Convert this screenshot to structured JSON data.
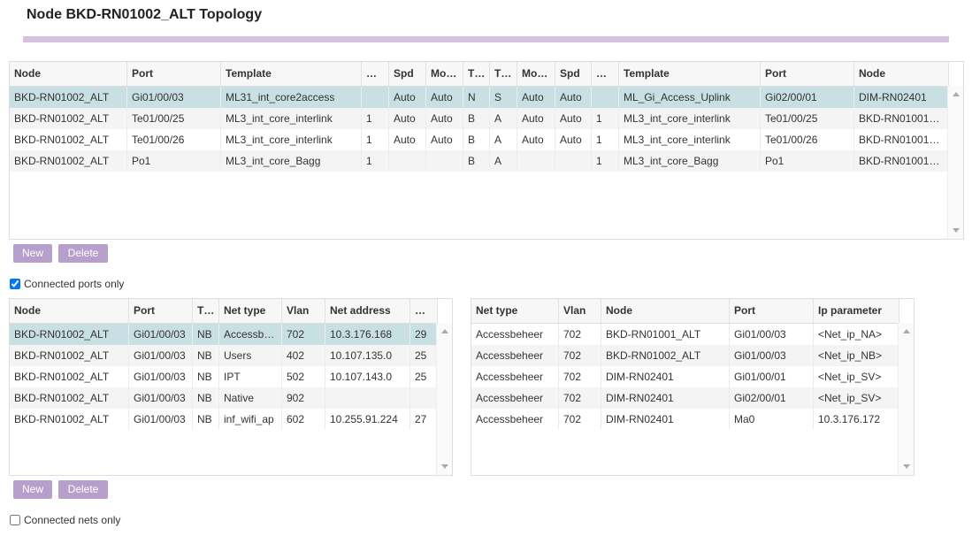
{
  "title": "Node BKD-RN01002_ALT Topology",
  "links_top": {
    "columns": [
      "Node",
      "Port",
      "Template",
      "…",
      "Spd",
      "Mo…",
      "T…",
      "T…",
      "Mo…",
      "Spd",
      "…",
      "Template",
      "Port",
      "Node"
    ],
    "selected_row": 0,
    "rows": [
      [
        "BKD-RN01002_ALT",
        "Gi01/00/03",
        "ML31_int_core2access",
        null,
        "Auto",
        "Auto",
        "N",
        "S",
        "Auto",
        "Auto",
        null,
        "ML_Gi_Access_Uplink",
        "Gi02/00/01",
        "DIM-RN02401"
      ],
      [
        "BKD-RN01002_ALT",
        "Te01/00/25",
        "ML3_int_core_interlink",
        1,
        "Auto",
        "Auto",
        "B",
        "A",
        "Auto",
        "Auto",
        1,
        "ML3_int_core_interlink",
        "Te01/00/25",
        "BKD-RN01001…"
      ],
      [
        "BKD-RN01002_ALT",
        "Te01/00/26",
        "ML3_int_core_interlink",
        1,
        "Auto",
        "Auto",
        "B",
        "A",
        "Auto",
        "Auto",
        1,
        "ML3_int_core_interlink",
        "Te01/00/26",
        "BKD-RN01001…"
      ],
      [
        "BKD-RN01002_ALT",
        "Po1",
        "ML3_int_core_Bagg",
        1,
        null,
        null,
        "B",
        "A",
        null,
        null,
        1,
        "ML3_int_core_Bagg",
        "Po1",
        "BKD-RN01001…"
      ]
    ]
  },
  "links_buttons": {
    "new": "New",
    "delete": "Delete"
  },
  "connected_ports": {
    "label": "Connected ports only",
    "checked": true
  },
  "nets": {
    "columns": [
      "Node",
      "Port",
      "T…",
      "Net type",
      "Vlan",
      "Net address",
      "…"
    ],
    "selected_row": 0,
    "rows": [
      [
        "BKD-RN01002_ALT",
        "Gi01/00/03",
        "NB",
        "Accessb…",
        702,
        "10.3.176.168",
        29
      ],
      [
        "BKD-RN01002_ALT",
        "Gi01/00/03",
        "NB",
        "Users",
        402,
        "10.107.135.0",
        25
      ],
      [
        "BKD-RN01002_ALT",
        "Gi01/00/03",
        "NB",
        "IPT",
        502,
        "10.107.143.0",
        25
      ],
      [
        "BKD-RN01002_ALT",
        "Gi01/00/03",
        "NB",
        "Native",
        902,
        null,
        null
      ],
      [
        "BKD-RN01002_ALT",
        "Gi01/00/03",
        "NB",
        "inf_wifi_ap",
        602,
        "10.255.91.224",
        27
      ]
    ]
  },
  "net_members": {
    "columns": [
      "Net type",
      "Vlan",
      "Node",
      "Port",
      "Ip parameter"
    ],
    "rows": [
      [
        "Accessbeheer",
        702,
        "BKD-RN01001_ALT",
        "Gi01/00/03",
        "<Net_ip_NA>"
      ],
      [
        "Accessbeheer",
        702,
        "BKD-RN01002_ALT",
        "Gi01/00/03",
        "<Net_ip_NB>"
      ],
      [
        "Accessbeheer",
        702,
        "DIM-RN02401",
        "Gi01/00/01",
        "<Net_ip_SV>"
      ],
      [
        "Accessbeheer",
        702,
        "DIM-RN02401",
        "Gi02/00/01",
        "<Net_ip_SV>"
      ],
      [
        "Accessbeheer",
        702,
        "DIM-RN02401",
        "Ma0",
        "10.3.176.172"
      ]
    ]
  },
  "nets_buttons": {
    "new": "New",
    "delete": "Delete"
  },
  "connected_nets": {
    "label": "Connected nets only",
    "checked": false
  }
}
